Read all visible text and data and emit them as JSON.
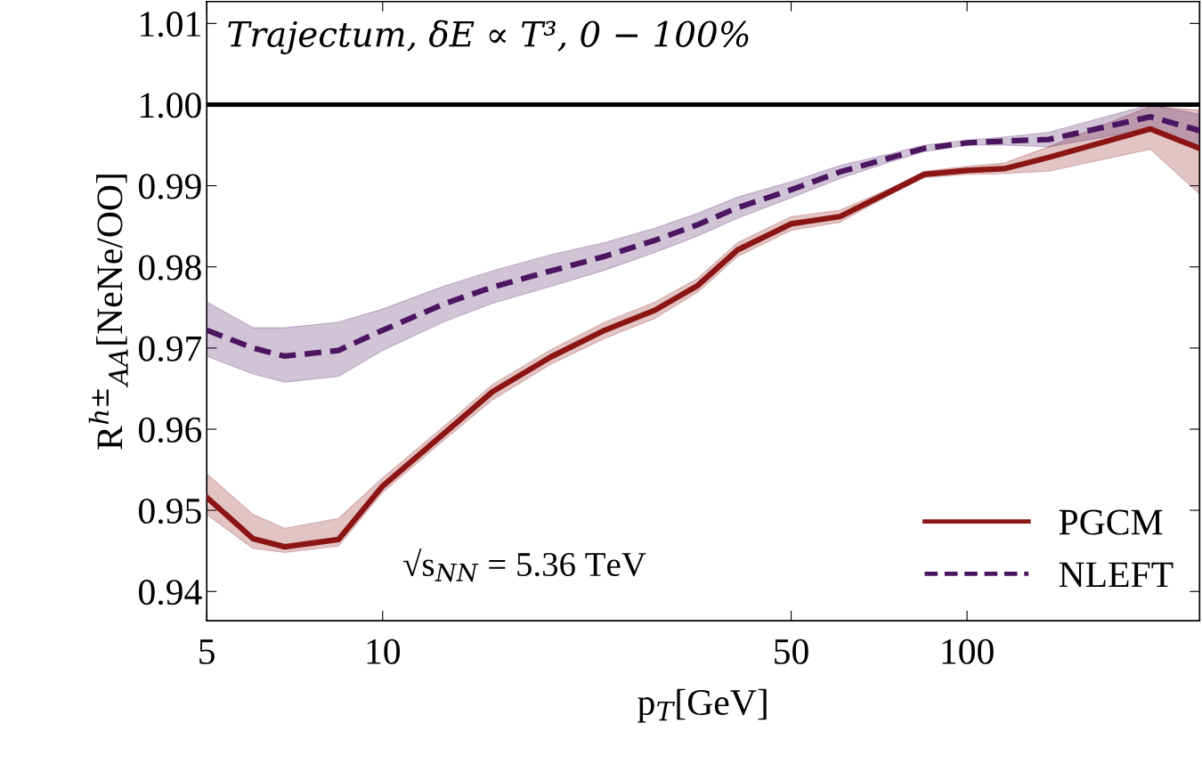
{
  "chart_data": {
    "type": "line",
    "title": "Trajectum, δE ∝ T³, 0 − 100%",
    "xlabel": "p$_{T}$[GeV]",
    "ylabel": "R$^{h±}$$_{AA}$[NeNe/OO]",
    "annotations": [
      "√s$_{NN}$ = 5.36 TeV"
    ],
    "x": [
      5,
      6,
      6.8,
      8.4,
      10,
      12.8,
      15.4,
      19.4,
      24,
      29.3,
      34.6,
      40.5,
      50,
      60.6,
      73.5,
      84.5,
      100,
      115.8,
      138,
      206,
      250
    ],
    "series": [
      {
        "name": "PGCM",
        "color": "#8b1414",
        "line_style": "solid",
        "values": [
          0.9516,
          0.9465,
          0.9455,
          0.9464,
          0.953,
          0.9596,
          0.9646,
          0.9689,
          0.9722,
          0.9747,
          0.9777,
          0.9821,
          0.9853,
          0.9862,
          0.9892,
          0.9914,
          0.9919,
          0.9921,
          0.9935,
          0.997,
          0.9946
        ],
        "lower": [
          0.9495,
          0.9453,
          0.9448,
          0.9456,
          0.9522,
          0.9588,
          0.9636,
          0.968,
          0.9712,
          0.9737,
          0.9769,
          0.9813,
          0.9845,
          0.9855,
          0.9888,
          0.991,
          0.9914,
          0.9915,
          0.9918,
          0.9945,
          0.989
        ],
        "upper": [
          0.9545,
          0.9495,
          0.9478,
          0.949,
          0.954,
          0.9605,
          0.9655,
          0.9698,
          0.9732,
          0.9757,
          0.9786,
          0.983,
          0.9862,
          0.987,
          0.9896,
          0.9918,
          0.9924,
          0.9928,
          0.9948,
          0.9998,
          0.9993
        ]
      },
      {
        "name": "NLEFT",
        "color": "#4b1560",
        "line_style": "dashed",
        "values": [
          0.9722,
          0.97,
          0.969,
          0.9697,
          0.9722,
          0.9755,
          0.9775,
          0.9795,
          0.9813,
          0.9833,
          0.9852,
          0.9873,
          0.9895,
          0.9917,
          0.9934,
          0.9946,
          0.9953,
          0.9955,
          0.9957,
          0.9985,
          0.9968
        ],
        "lower": [
          0.969,
          0.9668,
          0.9658,
          0.9665,
          0.9697,
          0.9733,
          0.9755,
          0.9776,
          0.9796,
          0.9818,
          0.9838,
          0.986,
          0.9885,
          0.9909,
          0.9929,
          0.9942,
          0.995,
          0.995,
          0.9948,
          0.997,
          0.9948
        ],
        "upper": [
          0.9757,
          0.9725,
          0.9725,
          0.9732,
          0.9748,
          0.9777,
          0.9795,
          0.9815,
          0.983,
          0.9848,
          0.9866,
          0.9886,
          0.9905,
          0.9925,
          0.9939,
          0.995,
          0.9956,
          0.996,
          0.9966,
          1.0,
          0.9988
        ]
      }
    ],
    "log": "x",
    "xlim": [
      5,
      250
    ],
    "xticks": [
      5,
      10,
      50,
      100
    ],
    "ylim": [
      0.9364,
      1.0127
    ],
    "yticks": [
      {
        "value": 0.94,
        "label": "0.94"
      },
      {
        "value": 0.95,
        "label": "0.95"
      },
      {
        "value": 0.96,
        "label": "0.96"
      },
      {
        "value": 0.97,
        "label": "0.97"
      },
      {
        "value": 0.98,
        "label": "0.98"
      },
      {
        "value": 0.99,
        "label": "0.99"
      },
      {
        "value": 1.0,
        "label": "1.00"
      },
      {
        "value": 1.01,
        "label": "1.01"
      }
    ],
    "ref_lines": [
      {
        "axis": "y",
        "value": 1.0,
        "color": "#000000"
      }
    ],
    "grid": false,
    "legend": "bottom right",
    "marker": "none"
  }
}
